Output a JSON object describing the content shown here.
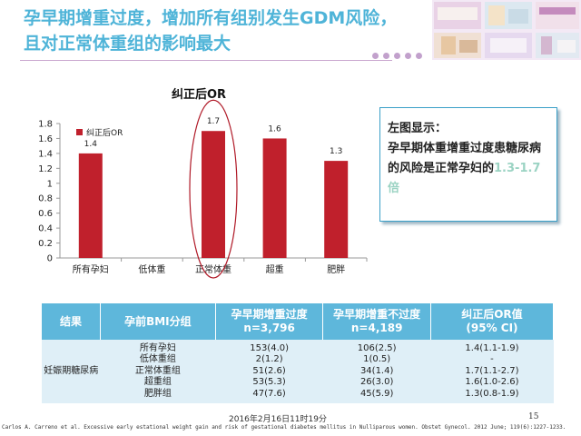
{
  "slide": {
    "title": "孕早期增重过度，增加所有组别发生GDM风险，\n且对正常体重组的影响最大"
  },
  "chart_data": {
    "type": "bar",
    "title": "纠正后OR",
    "categories": [
      "所有孕妇",
      "低体重",
      "正常体重",
      "超重",
      "肥胖"
    ],
    "series": [
      {
        "name": "纠正后OR",
        "values": [
          1.4,
          null,
          1.7,
          1.6,
          1.3
        ],
        "labels": [
          "1.4",
          "",
          "1.7",
          "1.6",
          "1.3"
        ]
      }
    ],
    "ylim": [
      0,
      1.8
    ],
    "yticks": [
      "0",
      "0.2",
      "0.4",
      "0.6",
      "0.8",
      "1",
      "1.2",
      "1.4",
      "1.6",
      "1.8"
    ],
    "xlabel": "",
    "ylabel": "",
    "legend": "top-left",
    "highlight_category": "正常体重",
    "colors": {
      "bar": "#c0202c",
      "highlight": "#b01a28",
      "axis": "#9a9a9a"
    }
  },
  "note": {
    "head": "左图显示：",
    "body": "孕早期体重增重过度患糖尿病的风险是正常孕妇的",
    "highlight": "1.3-1.7倍"
  },
  "table": {
    "headers": [
      "结果",
      "孕前BMI分组",
      "孕早期增重过度\nn=3,796",
      "孕早期增重不过度\nn=4,189",
      "纠正后OR值\n(95% CI)"
    ],
    "outcome": "妊娠期糖尿病",
    "groups": [
      "所有孕妇",
      "低体重组",
      "正常体重组",
      "超重组",
      "肥胖组"
    ],
    "excess": [
      "153(4.0)",
      "2(1.2)",
      "51(2.6)",
      "53(5.3)",
      "47(7.6)"
    ],
    "not_excess": [
      "106(2.5)",
      "1(0.5)",
      "34(1.4)",
      "26(3.0)",
      "45(5.9)"
    ],
    "or_values": [
      "1.4(1.1-1.9)",
      "-",
      "1.7(1.1-2.7)",
      "1.6(1.0-2.6)",
      "1.3(0.8-1.9)"
    ]
  },
  "footer": {
    "date": "2016年2月16日11时19分",
    "page": "15",
    "citation": "Carlos A. Carreno et al. Excessive early estational weight gain and risk of gestational diabetes mellitus in Nulliparous women. Obstet Gynecol. 2012 June; 119(6):1227-1233."
  }
}
